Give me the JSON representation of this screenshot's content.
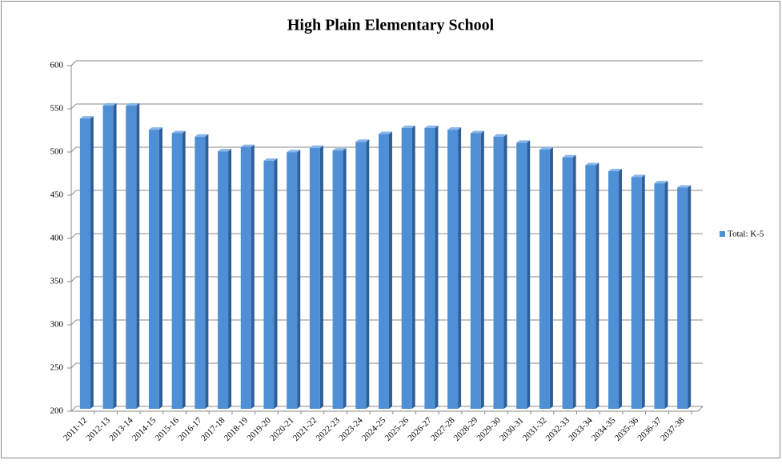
{
  "chart_data": {
    "type": "bar",
    "title": "High Plain Elementary School",
    "categories": [
      "2011-12",
      "2012-13",
      "2013-14",
      "2014-15",
      "2015-16",
      "2016-17",
      "2017-18",
      "2018-19",
      "2019-20",
      "2020-21",
      "2021-22",
      "2022-23",
      "2023-24",
      "2024-25",
      "2025-26",
      "2026-27",
      "2027-28",
      "2028-29",
      "2029-30",
      "2030-31",
      "2031-32",
      "2032-33",
      "2033-34",
      "2034-35",
      "2035-36",
      "2036-37",
      "2037-38"
    ],
    "series": [
      {
        "name": "Total: K-5",
        "color": "#4f8fd6",
        "values": [
          536,
          551,
          551,
          523,
          519,
          515,
          498,
          503,
          487,
          497,
          502,
          499,
          509,
          518,
          525,
          525,
          523,
          519,
          515,
          508,
          500,
          491,
          482,
          475,
          468,
          461,
          456
        ]
      }
    ],
    "ylim": [
      200,
      600
    ],
    "yticks": [
      200,
      250,
      300,
      350,
      400,
      450,
      500,
      550,
      600
    ],
    "grid": true,
    "legend": "right"
  }
}
